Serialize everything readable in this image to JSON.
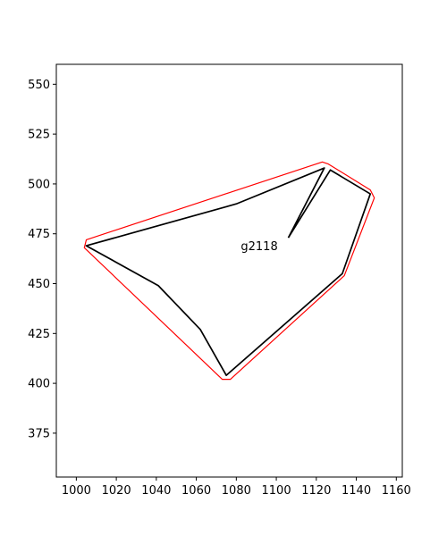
{
  "chart_data": {
    "type": "line",
    "title": "",
    "xlabel": "",
    "ylabel": "",
    "xlim": [
      990,
      1163
    ],
    "ylim": [
      353,
      560
    ],
    "grid": false,
    "xticks": [
      1000,
      1020,
      1040,
      1060,
      1080,
      1100,
      1120,
      1140,
      1160
    ],
    "yticks": [
      375,
      400,
      425,
      450,
      475,
      500,
      525,
      550
    ],
    "annotations": [
      {
        "text": "g2118",
        "x": 1091.5,
        "y": 469
      }
    ],
    "series": [
      {
        "color": "#ff0000",
        "closed": true,
        "points": [
          [
            1005,
            472
          ],
          [
            1123,
            511
          ],
          [
            1126,
            510
          ],
          [
            1147,
            497
          ],
          [
            1149,
            493
          ],
          [
            1134,
            454
          ],
          [
            1077,
            402
          ],
          [
            1073,
            402
          ],
          [
            1004,
            468
          ]
        ]
      },
      {
        "color": "#000000",
        "closed": false,
        "points": [
          [
            1106,
            473
          ],
          [
            1124,
            508
          ],
          [
            1080,
            490
          ],
          [
            1005,
            469
          ],
          [
            1041,
            449
          ],
          [
            1062,
            427
          ],
          [
            1075,
            404
          ],
          [
            1133,
            455
          ],
          [
            1147,
            495
          ],
          [
            1127,
            507
          ],
          [
            1106,
            473
          ]
        ]
      }
    ]
  }
}
